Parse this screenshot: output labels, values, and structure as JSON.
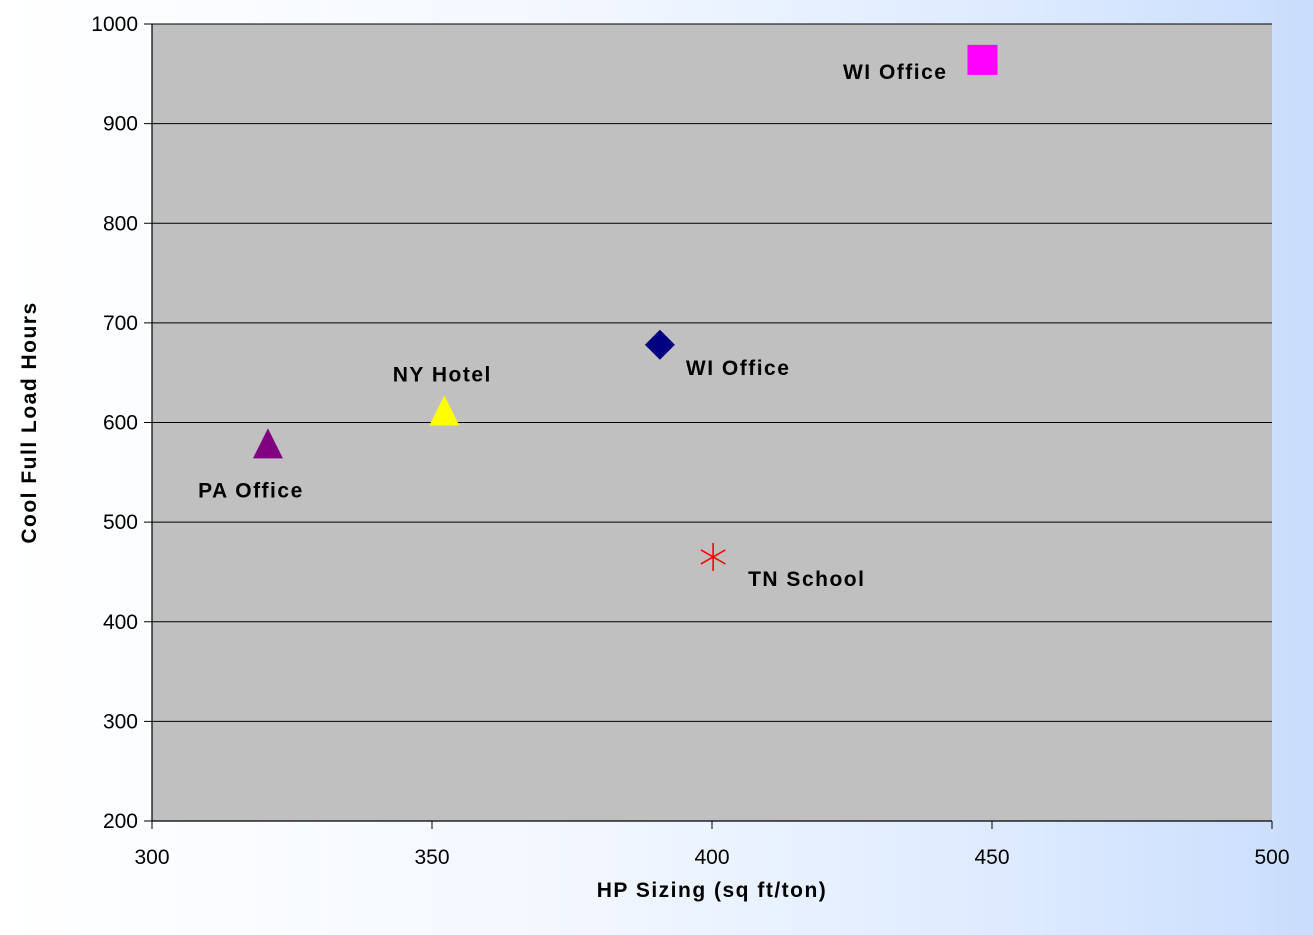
{
  "chart_data": {
    "type": "scatter",
    "title": "",
    "xlabel": "HP Sizing (sq ft/ton)",
    "ylabel": "Cool Full Load Hours",
    "xlim": [
      300,
      500
    ],
    "ylim": [
      200,
      1000
    ],
    "x_ticks": [
      300,
      350,
      400,
      450,
      500
    ],
    "y_ticks": [
      200,
      300,
      400,
      500,
      600,
      700,
      800,
      900,
      1000
    ],
    "grid": "horizontal",
    "legend": "none",
    "plot_background": "#c0c0c0",
    "points": [
      {
        "label": "WI Office",
        "x": 390.7,
        "y": 678,
        "marker": "diamond",
        "color": "#000080",
        "label_position": "below-right"
      },
      {
        "label": "WI Office",
        "x": 448.3,
        "y": 964,
        "marker": "square",
        "color": "#ff00ff",
        "label_position": "left"
      },
      {
        "label": "NY Hotel",
        "x": 352.2,
        "y": 611,
        "marker": "triangle",
        "color": "#ffff00",
        "label_position": "above"
      },
      {
        "label": "PA Office",
        "x": 320.7,
        "y": 578,
        "marker": "triangle",
        "color": "#800080",
        "label_position": "below"
      },
      {
        "label": "TN School",
        "x": 400.2,
        "y": 465,
        "marker": "asterisk",
        "color": "#ff0000",
        "label_position": "below-right"
      }
    ]
  }
}
